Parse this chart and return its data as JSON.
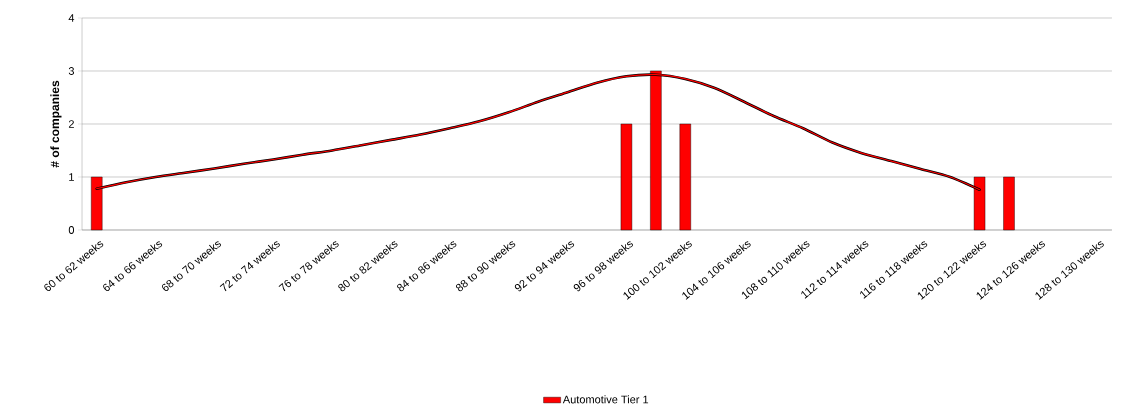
{
  "chart_data": {
    "type": "bar",
    "ylabel": "# of companies",
    "categories": [
      "60 to 62 weeks",
      null,
      "64 to 66 weeks",
      null,
      "68 to 70 weeks",
      null,
      "72 to 74 weeks",
      null,
      "76 to 78 weeks",
      null,
      "80 to 82 weeks",
      null,
      "84 to 86 weeks",
      null,
      "88 to 90 weeks",
      null,
      "92 to 94 weeks",
      null,
      "96 to 98 weeks",
      null,
      "100 to 102 weeks",
      null,
      "104 to 106 weeks",
      null,
      "108 to 110 weeks",
      null,
      "112 to 114 weeks",
      null,
      "116 to 118 weeks",
      null,
      "120 to 122 weeks",
      null,
      "124 to 126 weeks",
      null,
      "128 to 130 weeks"
    ],
    "series": [
      {
        "name": "Automotive Tier 1",
        "color": "#ff0000",
        "values": [
          1,
          null,
          null,
          null,
          null,
          null,
          null,
          null,
          null,
          null,
          null,
          null,
          null,
          null,
          null,
          null,
          null,
          null,
          2,
          3,
          2,
          null,
          null,
          null,
          null,
          null,
          null,
          null,
          null,
          null,
          1,
          1,
          null,
          null,
          null
        ]
      },
      {
        "type": "line",
        "color": "#ff0000",
        "values": [
          0.78,
          0.9,
          1.0,
          1.08,
          1.16,
          1.25,
          1.33,
          1.42,
          1.5,
          1.6,
          1.7,
          1.8,
          1.92,
          2.05,
          2.22,
          2.42,
          2.6,
          2.78,
          2.9,
          2.93,
          2.85,
          2.68,
          2.42,
          2.15,
          1.92,
          1.65,
          1.45,
          1.3,
          1.15,
          1.0,
          0.76,
          null,
          null,
          null,
          null
        ]
      }
    ],
    "ylim": [
      0,
      4
    ],
    "yticks": [
      0,
      1,
      2,
      3,
      4
    ],
    "grid": "y",
    "legend": "bottom",
    "marker": "none"
  }
}
